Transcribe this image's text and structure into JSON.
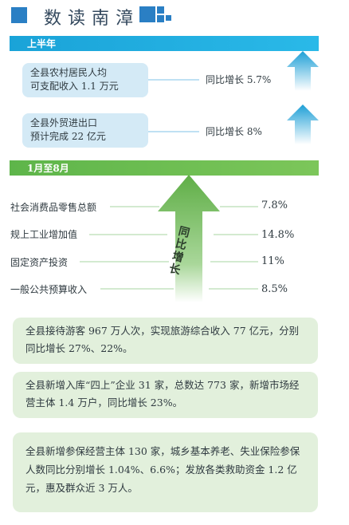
{
  "header": {
    "title": "数读南漳"
  },
  "colors": {
    "blue": "#2a7fc4",
    "cyan": "#1aa3d8",
    "green": "#6dbb52",
    "light_blue_box": "#d4eaf6",
    "light_green_box": "#e2f0dc"
  },
  "first_half": {
    "bar_label": "上半年",
    "items": [
      {
        "line1": "全县农村居民人均",
        "line2": "可支配收入 1.1 万元",
        "growth": "同比增长 5.7%"
      },
      {
        "line1": "全县外贸进出口",
        "line2": "预计完成 22 亿元",
        "growth": "同比增长 8%"
      }
    ]
  },
  "jan_aug": {
    "bar_label": "1月至8月",
    "arrow_text": "同比增长",
    "rows": [
      {
        "label": "社会消费品零售总额",
        "value": "7.8%"
      },
      {
        "label": "规上工业增加值",
        "value": "14.8%"
      },
      {
        "label": "固定资产投资",
        "value": "11%"
      },
      {
        "label": "一般公共预算收入",
        "value": "8.5%"
      }
    ]
  },
  "panels": [
    {
      "text": "全县接待游客 967 万人次，实现旅游综合收入 77 亿元，分别同比增长 27%、22%。"
    },
    {
      "text": "全县新增入库“四上”企业 31 家，总数达 773 家，新增市场经营主体 1.4 万户，同比增长 23%。"
    },
    {
      "text": "全县新增参保经营主体 130 家，城乡基本养老、失业保险参保人数同比分别增长 1.04%、6.6%；发放各类救助资金 1.2 亿元，惠及群众近 3 万人。"
    }
  ]
}
